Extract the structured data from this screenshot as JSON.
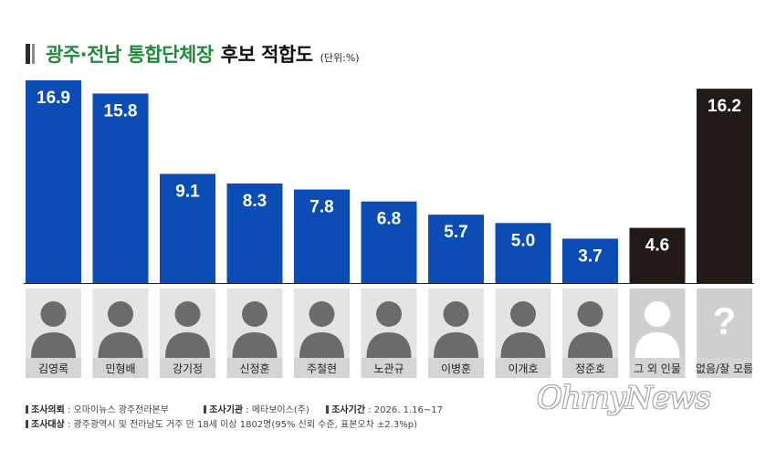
{
  "title": {
    "green": "광주·전남 통합단체장",
    "black": "후보 적합도",
    "unit": "(단위:%)"
  },
  "chart_data": {
    "type": "bar",
    "title": "광주·전남 통합단체장 후보 적합도",
    "unit": "(단위:%)",
    "categories": [
      "김영록",
      "민형배",
      "강기정",
      "신정훈",
      "주철현",
      "노관규",
      "이병훈",
      "이개호",
      "정준호",
      "그 외 인물",
      "없음/잘 모름"
    ],
    "values": [
      16.9,
      15.8,
      9.1,
      8.3,
      7.8,
      6.8,
      5.7,
      5.0,
      3.7,
      4.6,
      16.2
    ],
    "labels": [
      "16.9",
      "15.8",
      "9.1",
      "8.3",
      "7.8",
      "6.8",
      "5.7",
      "5.0",
      "3.7",
      "4.6",
      "16.2"
    ],
    "colors": [
      "#0b4db5",
      "#0b4db5",
      "#0b4db5",
      "#0b4db5",
      "#0b4db5",
      "#0b4db5",
      "#0b4db5",
      "#0b4db5",
      "#0b4db5",
      "#221a16",
      "#221a16"
    ],
    "ylim": [
      0,
      17.5
    ],
    "grid": false
  },
  "footer": {
    "line1": [
      {
        "key": "조사의뢰",
        "value": " : 오마이뉴스 광주전라본부"
      },
      {
        "key": "조사기관",
        "value": " : 메타보이스(주)"
      },
      {
        "key": "조사기간",
        "value": " : 2026. 1.16~17"
      }
    ],
    "line2": [
      {
        "key": "조사대상",
        "value": " : 광주광역시 및 전라남도 거주 만 18세 이상 1802명(95% 신뢰 수준, 표본오차 ±2.3%p)"
      }
    ]
  },
  "logo": "OhmyNews",
  "placeholder_mark": "?",
  "colors": {
    "blue": "#0b4db5",
    "dark": "#221a16",
    "green": "#1e8a3a"
  }
}
